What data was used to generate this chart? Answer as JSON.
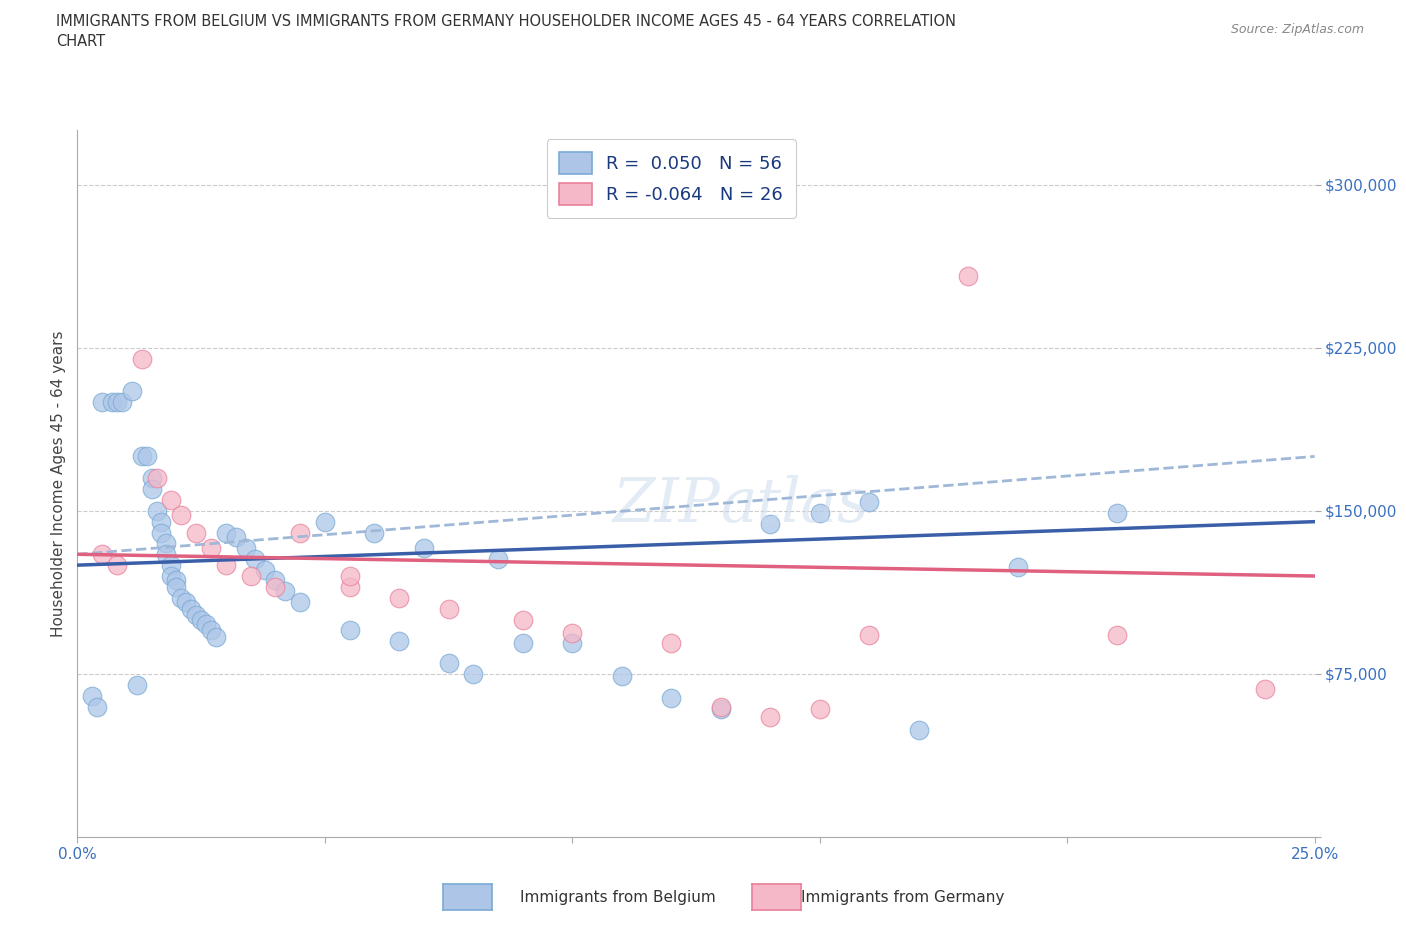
{
  "title_line1": "IMMIGRANTS FROM BELGIUM VS IMMIGRANTS FROM GERMANY HOUSEHOLDER INCOME AGES 45 - 64 YEARS CORRELATION",
  "title_line2": "CHART",
  "source_text": "Source: ZipAtlas.com",
  "ylabel": "Householder Income Ages 45 - 64 years",
  "xlim": [
    0.0,
    0.25
  ],
  "ylim": [
    0,
    325000
  ],
  "grid_color": "#cccccc",
  "background_color": "#ffffff",
  "color_belgium": "#adc6e8",
  "color_belgium_edge": "#7aaad4",
  "color_germany": "#f5b8c8",
  "color_germany_edge": "#e8809a",
  "color_belgium_line": "#3a5fa8",
  "color_germany_line": "#e06080",
  "color_germany_dash": "#7ab0d4",
  "watermark_color": "#d0dff0",
  "legend_label1": "Immigrants from Belgium",
  "legend_label2": "Immigrants from Germany",
  "belgium_x": [
    0.005,
    0.007,
    0.008,
    0.009,
    0.011,
    0.012,
    0.013,
    0.014,
    0.015,
    0.015,
    0.016,
    0.017,
    0.017,
    0.018,
    0.018,
    0.019,
    0.019,
    0.02,
    0.02,
    0.021,
    0.022,
    0.023,
    0.024,
    0.025,
    0.026,
    0.027,
    0.028,
    0.03,
    0.032,
    0.034,
    0.036,
    0.038,
    0.04,
    0.042,
    0.045,
    0.05,
    0.055,
    0.06,
    0.065,
    0.07,
    0.075,
    0.08,
    0.085,
    0.09,
    0.1,
    0.11,
    0.12,
    0.13,
    0.14,
    0.15,
    0.16,
    0.17,
    0.19,
    0.21,
    0.003,
    0.004
  ],
  "belgium_y": [
    200000,
    200000,
    200000,
    200000,
    205000,
    70000,
    175000,
    175000,
    165000,
    160000,
    150000,
    145000,
    140000,
    135000,
    130000,
    125000,
    120000,
    118000,
    115000,
    110000,
    108000,
    105000,
    102000,
    100000,
    98000,
    95000,
    92000,
    140000,
    138000,
    133000,
    128000,
    123000,
    118000,
    113000,
    108000,
    145000,
    95000,
    140000,
    90000,
    133000,
    80000,
    75000,
    128000,
    89000,
    89000,
    74000,
    64000,
    59000,
    144000,
    149000,
    154000,
    49000,
    124000,
    149000,
    65000,
    60000
  ],
  "germany_x": [
    0.005,
    0.008,
    0.013,
    0.016,
    0.019,
    0.021,
    0.024,
    0.027,
    0.03,
    0.035,
    0.04,
    0.045,
    0.055,
    0.065,
    0.075,
    0.09,
    0.1,
    0.12,
    0.14,
    0.16,
    0.18,
    0.21,
    0.055,
    0.13,
    0.15,
    0.24
  ],
  "germany_y": [
    130000,
    125000,
    220000,
    165000,
    155000,
    148000,
    140000,
    133000,
    125000,
    120000,
    115000,
    140000,
    115000,
    110000,
    105000,
    100000,
    94000,
    89000,
    55000,
    93000,
    258000,
    93000,
    120000,
    60000,
    59000,
    68000
  ]
}
